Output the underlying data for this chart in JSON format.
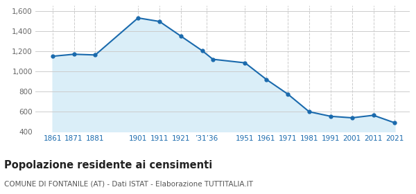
{
  "years": [
    1861,
    1871,
    1881,
    1901,
    1911,
    1921,
    1931,
    1936,
    1951,
    1961,
    1971,
    1981,
    1991,
    2001,
    2011,
    2021
  ],
  "population": [
    1150,
    1170,
    1163,
    1530,
    1495,
    1350,
    1205,
    1120,
    1085,
    920,
    775,
    600,
    555,
    540,
    565,
    490
  ],
  "tick_positions": [
    1861,
    1871,
    1881,
    1901,
    1911,
    1921,
    1933,
    1951,
    1961,
    1971,
    1981,
    1991,
    2001,
    2011,
    2021
  ],
  "tick_labels": [
    "1861",
    "1871",
    "1881",
    "1901",
    "1911",
    "1921",
    "’31’36",
    "1951",
    "1961",
    "1971",
    "1981",
    "1991",
    "2001",
    "2011",
    "2021"
  ],
  "line_color": "#1a6aad",
  "fill_color": "#daeef8",
  "marker_size": 3.5,
  "ylim": [
    400,
    1650
  ],
  "yticks": [
    400,
    600,
    800,
    1000,
    1200,
    1400,
    1600
  ],
  "ytick_labels": [
    "400",
    "600",
    "800",
    "1,000",
    "1,200",
    "1,400",
    "1,600"
  ],
  "xlim_left": 1853,
  "xlim_right": 2028,
  "title": "Popolazione residente ai censimenti",
  "subtitle": "COMUNE DI FONTANILE (AT) - Dati ISTAT - Elaborazione TUTTITALIA.IT",
  "title_fontsize": 10.5,
  "subtitle_fontsize": 7.5,
  "bg_color": "#ffffff",
  "grid_color": "#cccccc"
}
